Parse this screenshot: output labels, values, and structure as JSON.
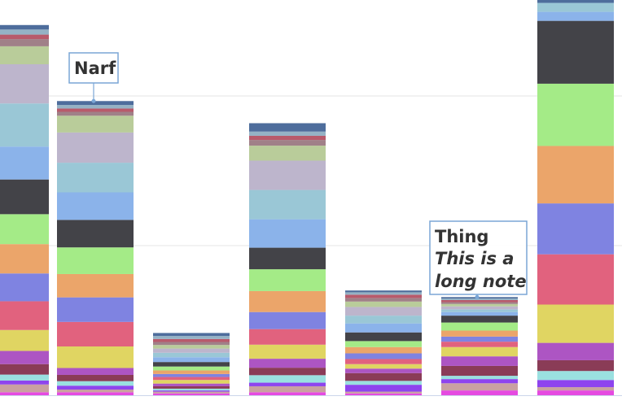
{
  "chart_data": {
    "type": "bar",
    "stacked": true,
    "grid": true,
    "legend": "none",
    "title": "",
    "xlabel": "",
    "ylabel": "",
    "ylim": [
      0,
      100
    ],
    "gridlines": [
      50,
      100
    ],
    "colors": [
      "#e54ae0",
      "#c9a1a1",
      "#8e44ee",
      "#9ae0e0",
      "#8a3c57",
      "#ad55c3",
      "#e0d562",
      "#e1627e",
      "#7f83e1",
      "#eba56a",
      "#a4eb87",
      "#434348",
      "#8bb3ea",
      "#9ac7d6",
      "#bdb5cc",
      "#b9cc9a",
      "#a08088",
      "#b85a6b",
      "#95b2c5",
      "#4e6d9c"
    ],
    "series": [
      {
        "values": [
          1.0,
          2.6,
          1.3,
          2.0,
          3.5,
          4.4,
          7.0,
          9.6,
          9.3,
          9.8,
          10.0,
          11.6,
          11.0,
          14.4,
          13.1,
          6.0,
          2.4,
          1.5,
          1.7,
          1.5
        ]
      },
      {
        "values": [
          1.0,
          0.9,
          1.3,
          1.5,
          2.1,
          2.3,
          7.2,
          8.2,
          8.2,
          7.8,
          8.9,
          9.2,
          9.2,
          9.9,
          10.1,
          5.6,
          1.3,
          1.1,
          1.2,
          1.3
        ]
      },
      {
        "values": [
          0.6,
          0.6,
          0.4,
          0.6,
          0.8,
          0.9,
          1.2,
          1.0,
          1.0,
          1.2,
          1.3,
          1.5,
          1.6,
          1.5,
          1.4,
          1.2,
          1.0,
          1.0,
          1.0,
          1.0
        ]
      },
      {
        "values": [
          1.0,
          2.0,
          1.2,
          2.5,
          2.5,
          3.0,
          4.7,
          5.2,
          5.7,
          7.0,
          7.3,
          7.2,
          9.5,
          9.8,
          9.8,
          5.0,
          1.9,
          1.4,
          1.4,
          2.8
        ]
      },
      {
        "values": [
          0.6,
          0.6,
          2.3,
          1.3,
          2.6,
          1.5,
          1.5,
          1.7,
          1.9,
          2.1,
          2.0,
          2.9,
          3.0,
          2.6,
          2.9,
          1.8,
          1.2,
          1.1,
          0.8,
          0.6
        ]
      },
      {
        "values": [
          1.6,
          2.4,
          1.4,
          1.1,
          3.3,
          3.2,
          3.1,
          1.8,
          1.7,
          2.0,
          2.7,
          2.3,
          1.2,
          0.9,
          1.0,
          0.8,
          0.6,
          0.7,
          0.5,
          0.5
        ]
      },
      {
        "values": [
          1.6,
          1.1,
          2.4,
          3.0,
          3.6,
          5.8,
          12.8,
          16.8,
          17.0,
          19.2,
          20.8,
          21.0,
          3.0,
          3.0,
          0.0,
          0.0,
          0.0,
          0.0,
          0.0,
          1.0
        ]
      }
    ],
    "annotations": [
      {
        "label": "Narf",
        "note": "",
        "series": 1
      },
      {
        "label": "Thing",
        "note": "This is a long note",
        "series": 5
      }
    ]
  }
}
